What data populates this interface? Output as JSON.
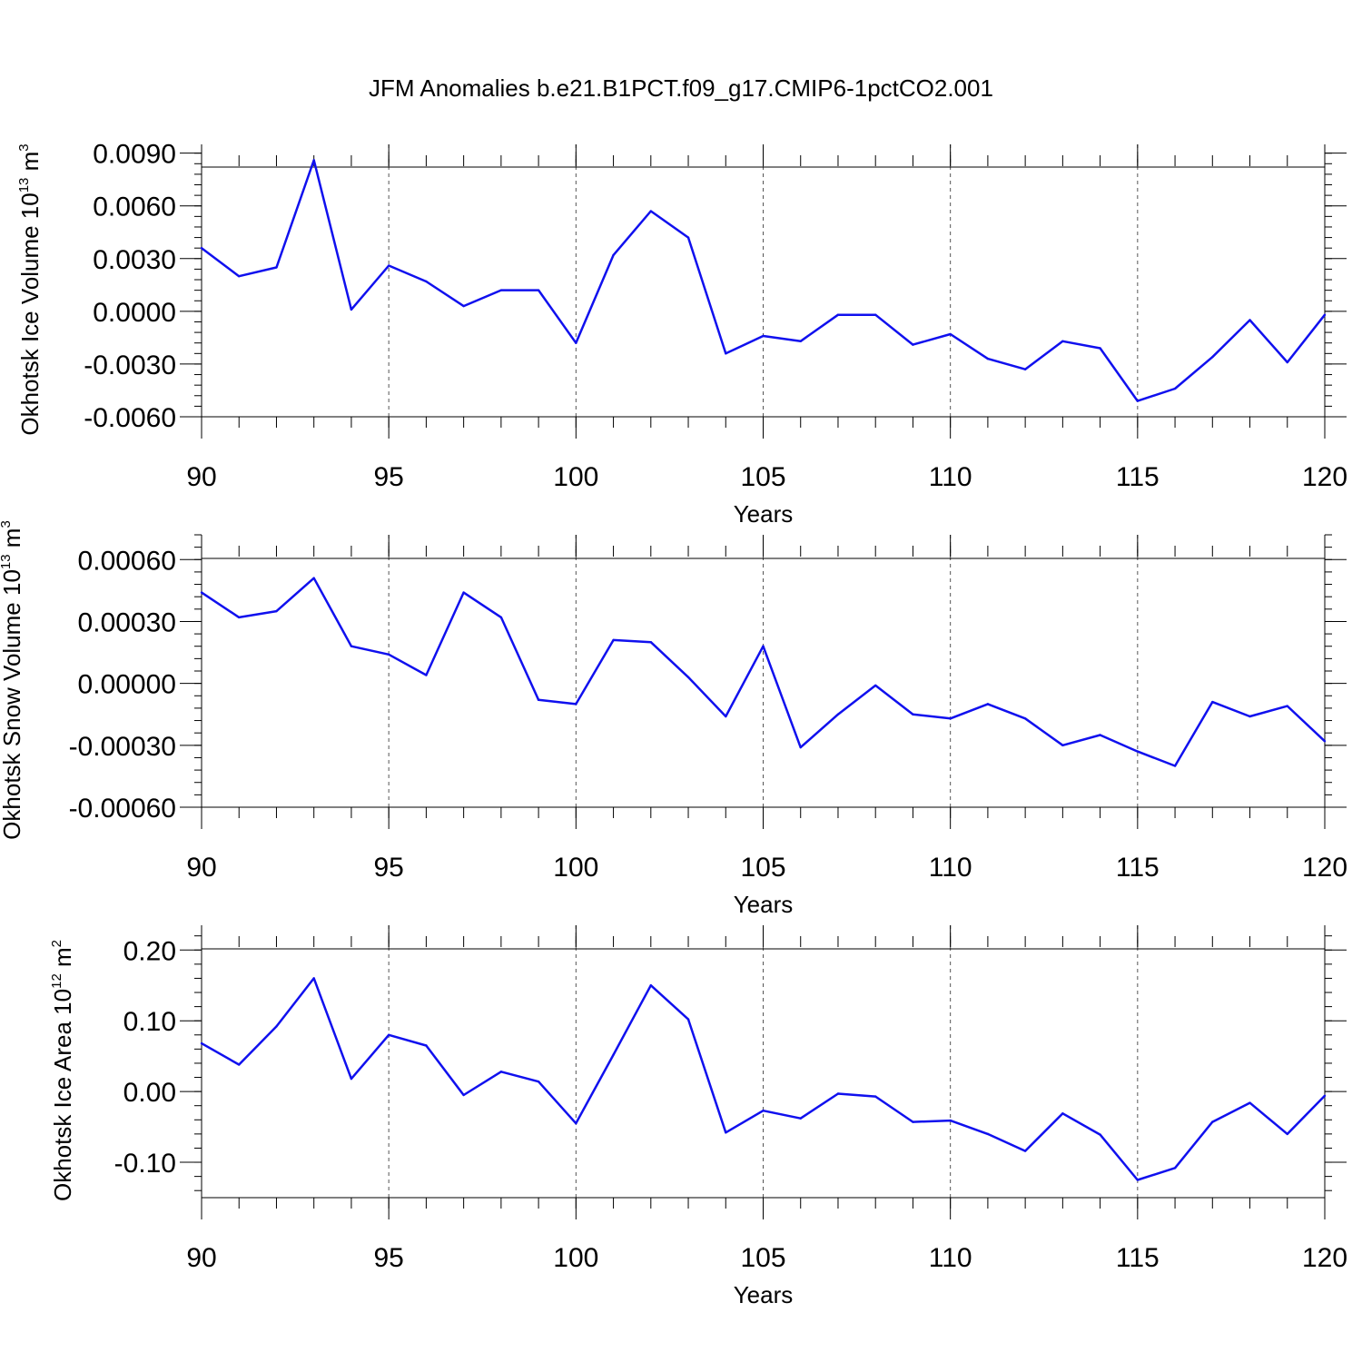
{
  "figure": {
    "title": "JFM Anomalies b.e21.B1PCT.f09_g17.CMIP6-1pctCO2.001"
  },
  "colors": {
    "line": "#1010ee",
    "axis": "#000000",
    "grid": "#555555"
  },
  "chart_data": [
    {
      "type": "line",
      "ylabel": "Okhotsk Ice Volume 10",
      "ylabel_sup": "13",
      "ylabel_unit": " m",
      "ylabel_unit_sup": "3",
      "xlabel": "Years",
      "xlim": [
        90,
        120
      ],
      "ylim": [
        -0.006,
        0.0095
      ],
      "x_ticks": [
        90,
        95,
        100,
        105,
        110,
        115,
        120
      ],
      "x_tick_labels": [
        "90",
        "95",
        "100",
        "105",
        "110",
        "115",
        "120"
      ],
      "y_ticks": [
        -0.006,
        -0.003,
        0.0,
        0.003,
        0.006,
        0.009
      ],
      "y_tick_labels": [
        "-0.0060",
        "-0.0030",
        "0.0000",
        "0.0030",
        "0.0060",
        "0.0090"
      ],
      "vertical_gridlines": [
        95,
        100,
        105,
        110,
        115
      ],
      "x": [
        90,
        91,
        92,
        93,
        94,
        95,
        96,
        97,
        98,
        99,
        100,
        101,
        102,
        103,
        104,
        105,
        106,
        107,
        108,
        109,
        110,
        111,
        112,
        113,
        114,
        115,
        116,
        117,
        118,
        119,
        120
      ],
      "values": [
        0.0036,
        0.002,
        0.0025,
        0.0086,
        0.0001,
        0.0026,
        0.0017,
        0.0003,
        0.0012,
        0.0012,
        -0.0018,
        0.0032,
        0.0057,
        0.0042,
        -0.0024,
        -0.0014,
        -0.0017,
        -0.0002,
        -0.0002,
        -0.0019,
        -0.0013,
        -0.0027,
        -0.0033,
        -0.0017,
        -0.0021,
        -0.0051,
        -0.0044,
        -0.0026,
        -0.0005,
        -0.0029,
        -0.0002
      ]
    },
    {
      "type": "line",
      "ylabel": "Okhotsk Snow Volume 10",
      "ylabel_sup": "13",
      "ylabel_unit": " m",
      "ylabel_unit_sup": "3",
      "xlabel": "Years",
      "xlim": [
        90,
        120
      ],
      "ylim": [
        -0.0006,
        0.00072
      ],
      "x_ticks": [
        90,
        95,
        100,
        105,
        110,
        115,
        120
      ],
      "x_tick_labels": [
        "90",
        "95",
        "100",
        "105",
        "110",
        "115",
        "120"
      ],
      "y_ticks": [
        -0.0006,
        -0.0003,
        0.0,
        0.0003,
        0.0006
      ],
      "y_tick_labels": [
        "-0.00060",
        "-0.00030",
        "0.00000",
        "0.00030",
        "0.00060"
      ],
      "vertical_gridlines": [
        95,
        100,
        105,
        110,
        115
      ],
      "x": [
        90,
        91,
        92,
        93,
        94,
        95,
        96,
        97,
        98,
        99,
        100,
        101,
        102,
        103,
        104,
        105,
        106,
        107,
        108,
        109,
        110,
        111,
        112,
        113,
        114,
        115,
        116,
        117,
        118,
        119,
        120
      ],
      "values": [
        0.00044,
        0.00032,
        0.00035,
        0.00051,
        0.00018,
        0.00014,
        4e-05,
        0.00044,
        0.00032,
        -8e-05,
        -0.0001,
        0.00021,
        0.0002,
        3e-05,
        -0.00016,
        0.00018,
        -0.00031,
        -0.00015,
        -1e-05,
        -0.00015,
        -0.00017,
        -0.0001,
        -0.00017,
        -0.0003,
        -0.00025,
        -0.00033,
        -0.0004,
        -9e-05,
        -0.00016,
        -0.00011,
        -0.00028
      ]
    },
    {
      "type": "line",
      "ylabel": "Okhotsk Ice Area 10",
      "ylabel_sup": "12",
      "ylabel_unit": " m",
      "ylabel_unit_sup": "2",
      "xlabel": "Years",
      "xlim": [
        90,
        120
      ],
      "ylim": [
        -0.15,
        0.235
      ],
      "x_ticks": [
        90,
        95,
        100,
        105,
        110,
        115,
        120
      ],
      "x_tick_labels": [
        "90",
        "95",
        "100",
        "105",
        "110",
        "115",
        "120"
      ],
      "y_ticks": [
        -0.1,
        0.0,
        0.1,
        0.2
      ],
      "y_tick_labels": [
        "-0.10",
        "0.00",
        "0.10",
        "0.20"
      ],
      "vertical_gridlines": [
        95,
        100,
        105,
        110,
        115
      ],
      "x": [
        90,
        91,
        92,
        93,
        94,
        95,
        96,
        97,
        98,
        99,
        100,
        101,
        102,
        103,
        104,
        105,
        106,
        107,
        108,
        109,
        110,
        111,
        112,
        113,
        114,
        115,
        116,
        117,
        118,
        119,
        120
      ],
      "values": [
        0.068,
        0.038,
        0.092,
        0.16,
        0.018,
        0.08,
        0.065,
        -0.005,
        0.028,
        0.014,
        -0.045,
        0.052,
        0.15,
        0.102,
        -0.058,
        -0.027,
        -0.038,
        -0.003,
        -0.007,
        -0.043,
        -0.041,
        -0.06,
        -0.084,
        -0.031,
        -0.061,
        -0.125,
        -0.108,
        -0.043,
        -0.016,
        -0.06,
        -0.006
      ]
    }
  ]
}
